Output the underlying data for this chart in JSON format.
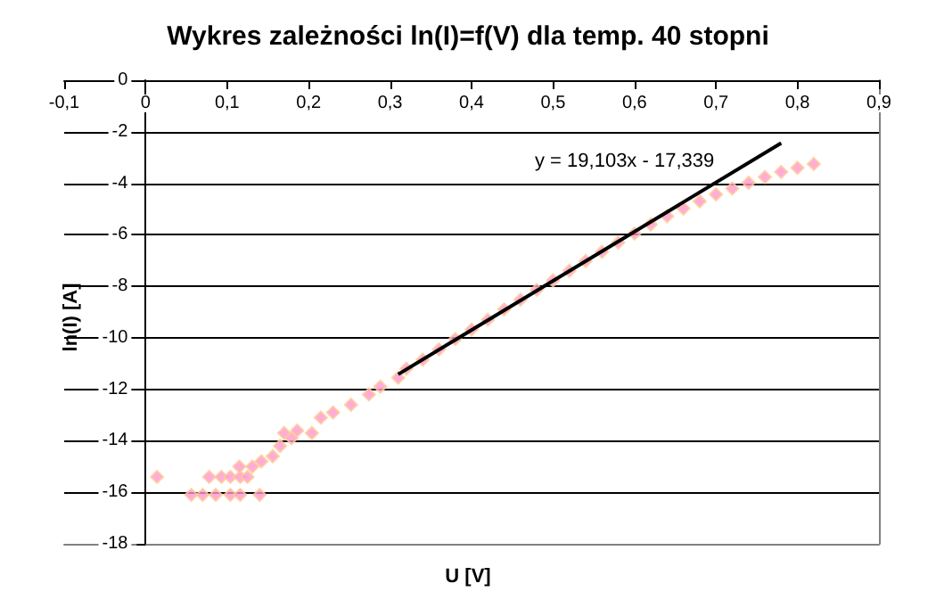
{
  "chart_data": {
    "type": "scatter",
    "title": "Wykres zależności ln(I)=f(V) dla temp. 40 stopni",
    "xlabel": "U [V]",
    "ylabel": "ln(I) [A]",
    "xlim": [
      -0.1,
      0.9
    ],
    "xticks": [
      {
        "value": -0.1,
        "label": "-0,1"
      },
      {
        "value": 0,
        "label": "0"
      },
      {
        "value": 0.1,
        "label": "0,1"
      },
      {
        "value": 0.2,
        "label": "0,2"
      },
      {
        "value": 0.3,
        "label": "0,3"
      },
      {
        "value": 0.4,
        "label": "0,4"
      },
      {
        "value": 0.5,
        "label": "0,5"
      },
      {
        "value": 0.6,
        "label": "0,6"
      },
      {
        "value": 0.7,
        "label": "0,7"
      },
      {
        "value": 0.8,
        "label": "0,8"
      },
      {
        "value": 0.9,
        "label": "0,9"
      }
    ],
    "ylim": [
      -18,
      0
    ],
    "yticks": [
      -18,
      -16,
      -14,
      -12,
      -10,
      -8,
      -6,
      -4,
      -2,
      0
    ],
    "grid": "y",
    "marker": "diamond",
    "series": [
      {
        "color": "#ff99cc",
        "x": [
          0.014,
          0.056,
          0.07,
          0.086,
          0.104,
          0.116,
          0.14,
          0.078,
          0.093,
          0.104,
          0.116,
          0.125,
          0.115,
          0.127,
          0.131,
          0.142,
          0.156,
          0.165,
          0.17,
          0.179,
          0.186,
          0.204,
          0.215,
          0.23,
          0.252,
          0.274,
          0.288,
          0.31,
          0.32,
          0.34,
          0.36,
          0.38,
          0.4,
          0.42,
          0.44,
          0.46,
          0.48,
          0.5,
          0.52,
          0.54,
          0.56,
          0.58,
          0.6,
          0.62,
          0.64,
          0.66,
          0.68,
          0.7,
          0.72,
          0.74,
          0.76,
          0.78,
          0.8,
          0.82
        ],
        "values": [
          -15.4,
          -16.1,
          -16.1,
          -16.1,
          -16.1,
          -16.1,
          -16.1,
          -15.4,
          -15.4,
          -15.4,
          -15.4,
          -15.4,
          -15,
          null,
          -15,
          -14.8,
          -14.6,
          -14.2,
          -13.7,
          -13.9,
          -13.6,
          -13.7,
          -13.1,
          -12.9,
          -12.6,
          -12.2,
          -11.9,
          -11.55,
          -11.2,
          -10.85,
          -10.45,
          -10.05,
          -9.68,
          -9.3,
          -8.9,
          -8.52,
          -8.14,
          -7.77,
          -7.4,
          -7.02,
          -6.66,
          -6.3,
          -5.95,
          -5.6,
          -5.28,
          -4.98,
          -4.7,
          -4.43,
          -4.2,
          -3.98,
          -3.76,
          -3.56,
          -3.4,
          -3.25
        ]
      },
      {
        "type": "line",
        "color": "#000000",
        "marker": "none",
        "x": [
          0.31,
          0.78
        ],
        "values": [
          -11.42,
          -2.44
        ]
      }
    ],
    "annotations": [
      "y = 19,103x - 17,339"
    ]
  }
}
